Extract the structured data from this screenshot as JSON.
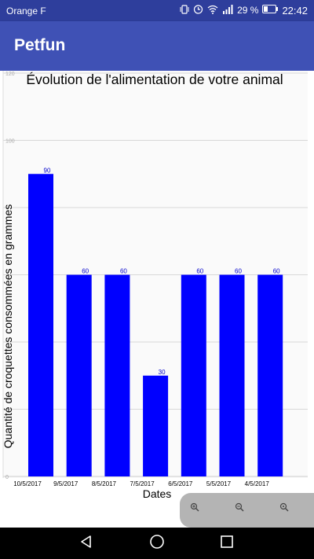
{
  "status_bar": {
    "carrier": "Orange F",
    "battery": "29 %",
    "time": "22:42"
  },
  "app_bar": {
    "title": "Petfun"
  },
  "chart_data": {
    "type": "bar",
    "title": "Évolution de l'alimentation de votre animal",
    "xlabel": "Dates",
    "ylabel": "Quantité de croquettes consommées en grammes",
    "categories": [
      "10/5/2017",
      "9/5/2017",
      "8/5/2017",
      "7/5/2017",
      "6/5/2017",
      "5/5/2017",
      "4/5/2017"
    ],
    "values": [
      90,
      60,
      60,
      30,
      60,
      60,
      60
    ],
    "ylim": [
      0,
      120
    ],
    "yticks": [
      "0",
      "100",
      "120"
    ],
    "grid": true,
    "bar_color": "#0000ff",
    "value_label_color": "#0000cc"
  },
  "zoom_controls": {
    "items": [
      "zoom-in-icon",
      "zoom-out-icon",
      "zoom-reset-icon"
    ]
  },
  "colors": {
    "app_bar": "#3f51b5",
    "status_bar": "#2e3e9c"
  }
}
